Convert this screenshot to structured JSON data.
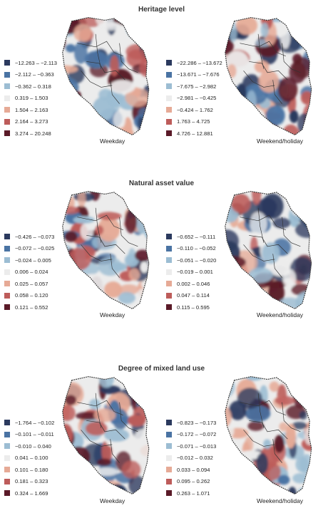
{
  "palette": [
    "#2b3a5e",
    "#4a73a3",
    "#9cbdd3",
    "#ececec",
    "#e6aa96",
    "#bd5c5a",
    "#5a1a28"
  ],
  "sections": [
    {
      "title": "Heritage level",
      "left_legend": [
        "−12.263 – −2.113",
        "−2.112 – −0.363",
        "−0.362 – 0.318",
        "0.319 – 1.503",
        "1.504 – 2.163",
        "2.164 – 3.273",
        "3.274 – 20.248"
      ],
      "right_legend": [
        "−22.286 – −13.672",
        "−13.671 – −7.676",
        "−7.675 – −2.982",
        "−2.981 – −0.425",
        "−0.424 – 1.762",
        "1.763 – 4.725",
        "4.726 – 12.881"
      ],
      "left_caption": "Weekday",
      "right_caption": "Weekend/holiday"
    },
    {
      "title": "Natural asset value",
      "left_legend": [
        "−0.426 – −0.073",
        "−0.072 – −0.025",
        "−0.024 – 0.005",
        "0.006 – 0.024",
        "0.025 – 0.057",
        "0.058 – 0.120",
        "0.121 – 0.552"
      ],
      "right_legend": [
        "−0.652 – −0.111",
        "−0.110 – −0.052",
        "−0.051 – −0.020",
        "−0.019 – 0.001",
        "0.002 – 0.046",
        "0.047 – 0.114",
        "0.115 – 0.595"
      ],
      "left_caption": "Weekday",
      "right_caption": "Weekend/holiday"
    },
    {
      "title": "Degree of mixed land use",
      "left_legend": [
        "−1.764 – −0.102",
        "−0.101 – −0.011",
        "−0.010 – 0.040",
        "0.041 – 0.100",
        "0.101 – 0.180",
        "0.181 – 0.323",
        "0.324 – 1.669"
      ],
      "right_legend": [
        "−0.823 – −0.173",
        "−0.172 – −0.072",
        "−0.071 – −0.013",
        "−0.012 – 0.032",
        "0.033 – 0.094",
        "0.095 – 0.262",
        "0.263 – 1.071"
      ],
      "left_caption": "Weekday",
      "right_caption": "Weekend/holiday"
    }
  ]
}
